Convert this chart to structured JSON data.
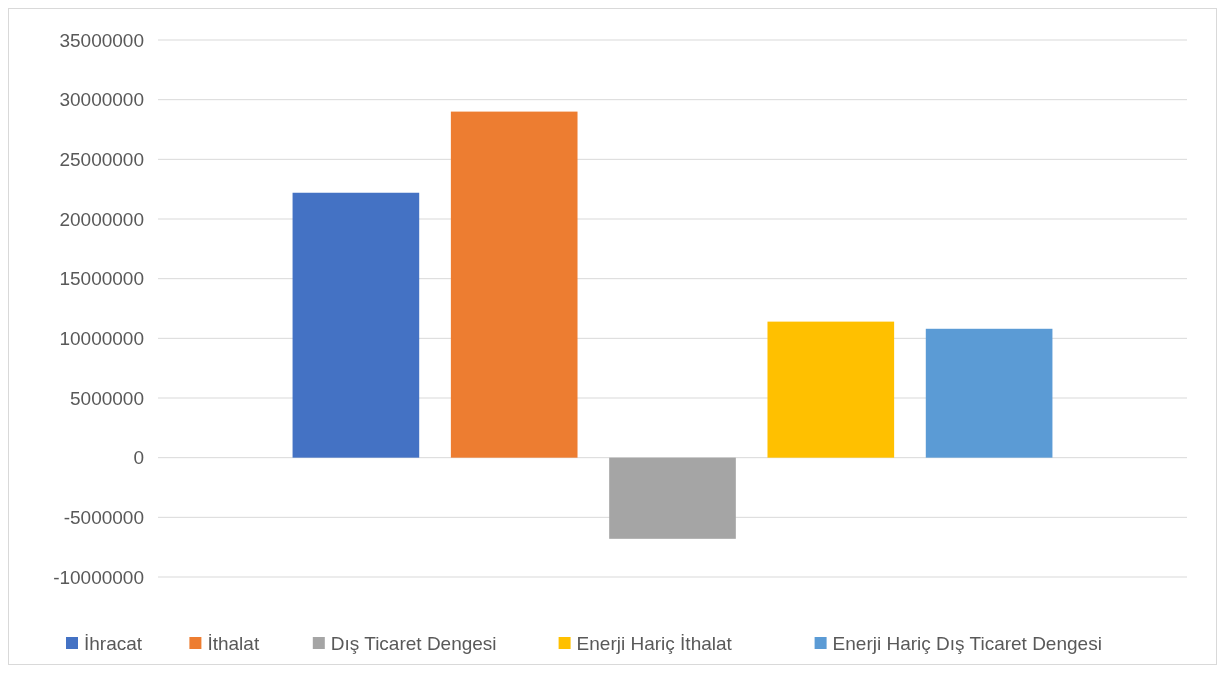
{
  "chart_data": {
    "type": "bar",
    "categories": [
      null
    ],
    "series": [
      {
        "name": "İhracat",
        "color": "#4472c4",
        "values": [
          22200000
        ]
      },
      {
        "name": "İthalat",
        "color": "#ed7d31",
        "values": [
          29000000
        ]
      },
      {
        "name": "Dış Ticaret Dengesi",
        "color": "#a5a5a5",
        "values": [
          -6800000
        ]
      },
      {
        "name": "Enerji Hariç İthalat",
        "color": "#ffc000",
        "values": [
          11400000
        ]
      },
      {
        "name": "Enerji Hariç Dış Ticaret Dengesi",
        "color": "#5b9bd5",
        "values": [
          10800000
        ]
      }
    ],
    "ylim": [
      -10000000,
      35000000
    ],
    "yticks": [
      -10000000,
      -5000000,
      0,
      5000000,
      10000000,
      15000000,
      20000000,
      25000000,
      30000000,
      35000000
    ],
    "grid": "y",
    "legend": "bottom"
  }
}
